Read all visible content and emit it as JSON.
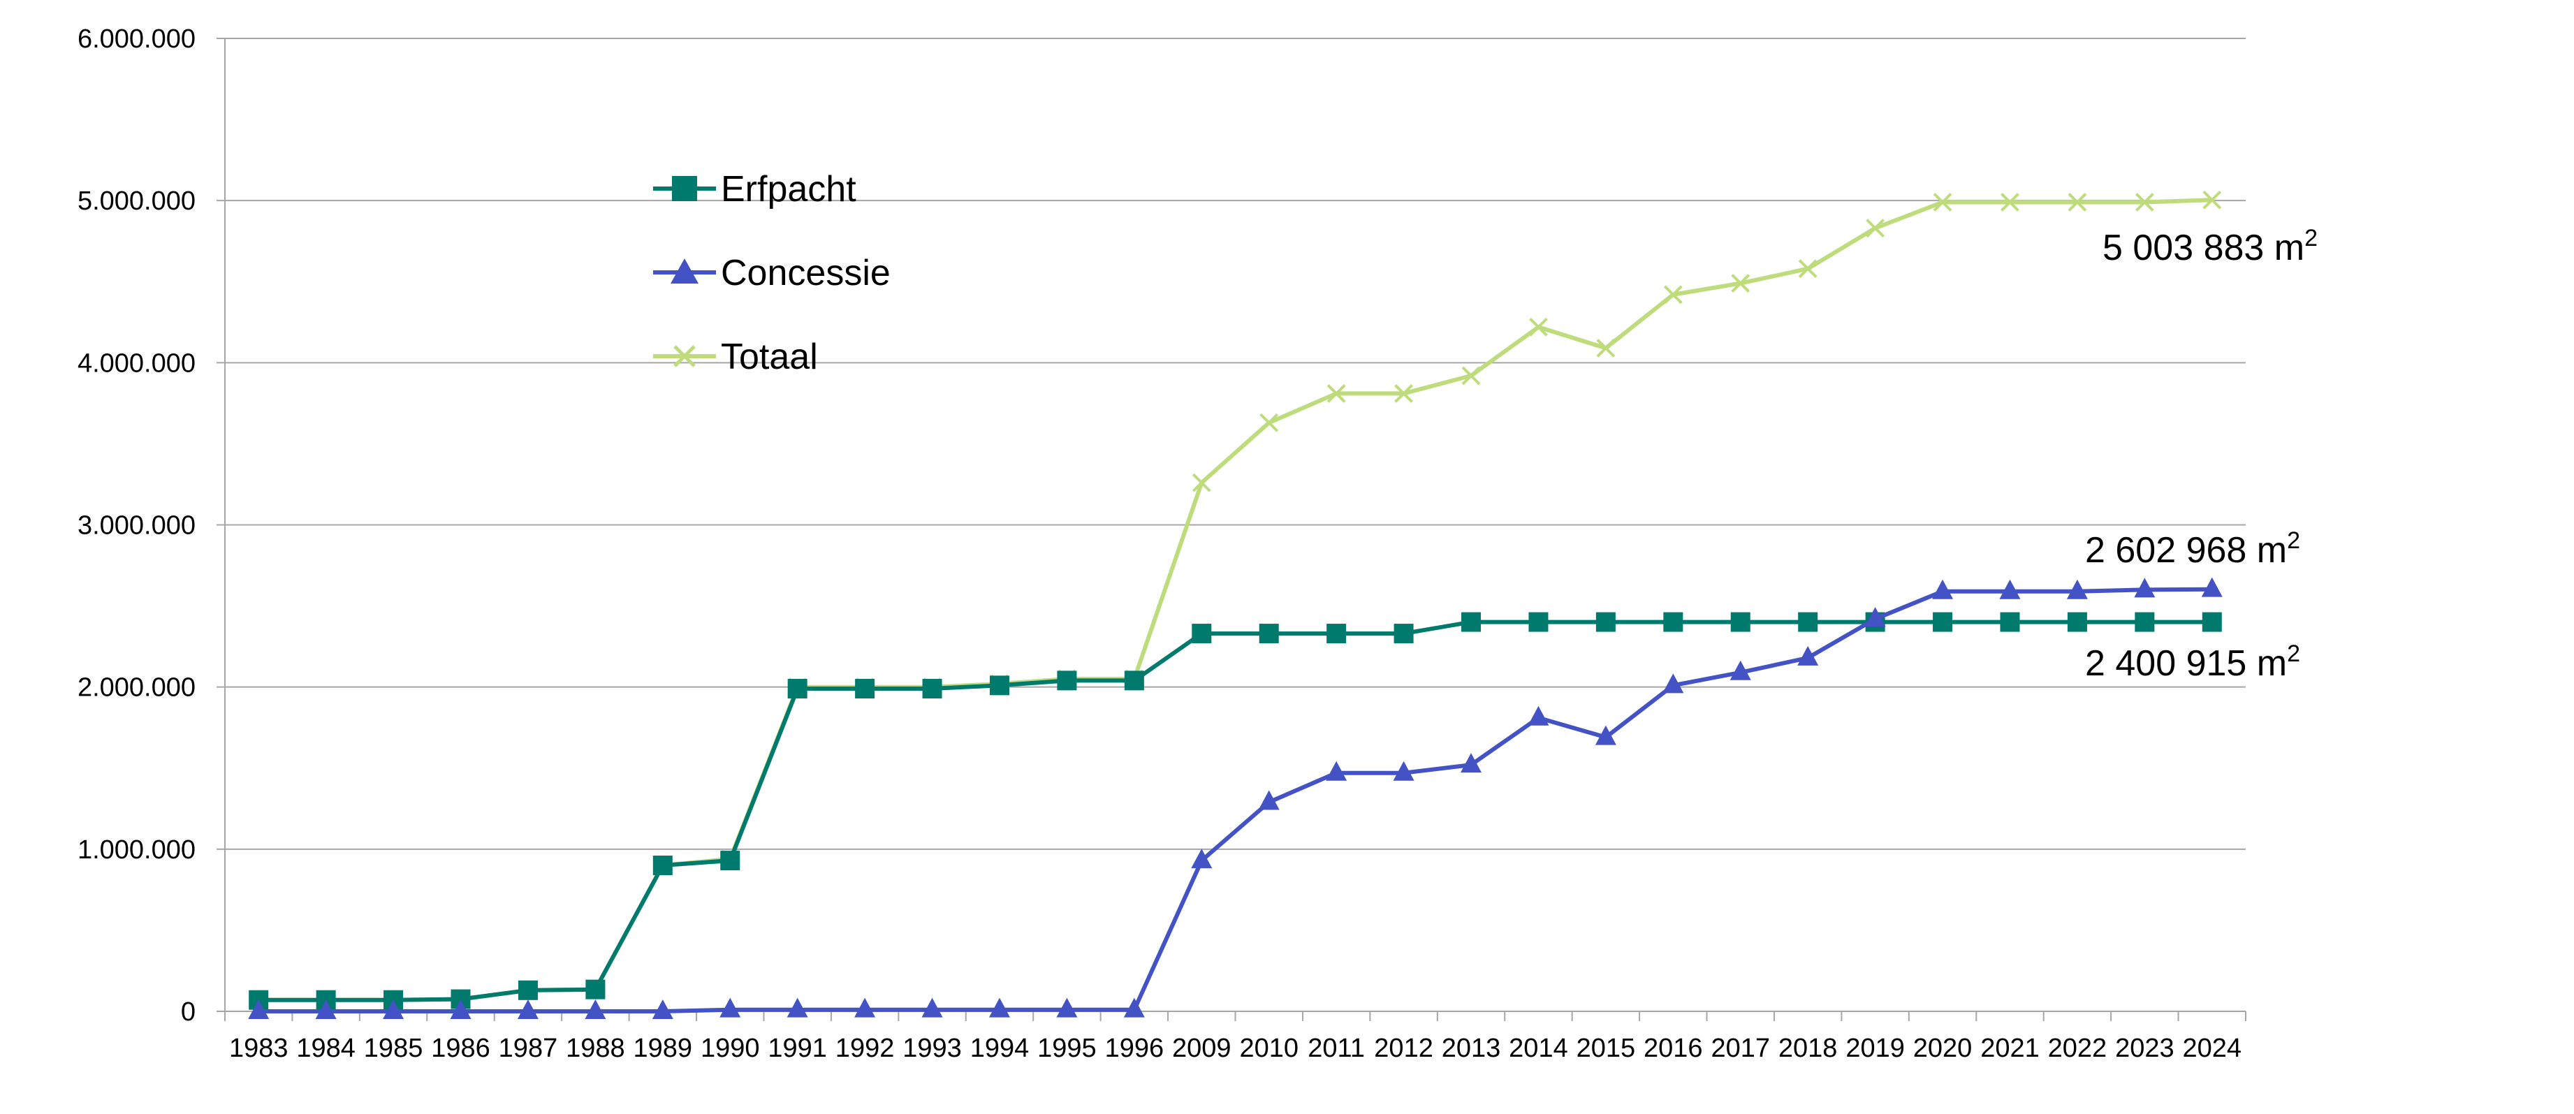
{
  "chart_data": {
    "type": "line",
    "title": "",
    "xlabel": "",
    "ylabel": "",
    "categories": [
      "1983",
      "1984",
      "1985",
      "1986",
      "1987",
      "1988",
      "1989",
      "1990",
      "1991",
      "1992",
      "1993",
      "1994",
      "1995",
      "1996",
      "2009",
      "2010",
      "2011",
      "2012",
      "2013",
      "2014",
      "2015",
      "2016",
      "2017",
      "2018",
      "2019",
      "2020",
      "2021",
      "2022",
      "2023",
      "2024"
    ],
    "y_ticks": [
      "0",
      "1.000.000",
      "2.000.000",
      "3.000.000",
      "4.000.000",
      "5.000.000",
      "6.000.000"
    ],
    "ylim": [
      0,
      6000000
    ],
    "grid": "horizontal",
    "legend_position": "upper-left inside",
    "series": [
      {
        "name": "Erfpacht",
        "color": "#007A6C",
        "marker": "square",
        "values": [
          70000,
          70000,
          70000,
          75000,
          130000,
          135000,
          900000,
          930000,
          1990000,
          1990000,
          1990000,
          2010000,
          2040000,
          2040000,
          2330000,
          2330000,
          2330000,
          2330000,
          2400915,
          2400915,
          2400915,
          2400915,
          2400915,
          2400915,
          2400915,
          2400915,
          2400915,
          2400915,
          2400915,
          2400915
        ]
      },
      {
        "name": "Concessie",
        "color": "#4352C4",
        "marker": "triangle",
        "values": [
          0,
          0,
          0,
          0,
          0,
          0,
          0,
          10000,
          10000,
          10000,
          10000,
          10000,
          10000,
          10000,
          930000,
          1290000,
          1470000,
          1470000,
          1520000,
          1810000,
          1690000,
          2010000,
          2090000,
          2180000,
          2420000,
          2590000,
          2590000,
          2590000,
          2600000,
          2602968
        ]
      },
      {
        "name": "Totaal",
        "color": "#BEDC7C",
        "marker": "x",
        "values": [
          70000,
          70000,
          70000,
          75000,
          130000,
          135000,
          900000,
          940000,
          2000000,
          2000000,
          2000000,
          2020000,
          2050000,
          2050000,
          3260000,
          3630000,
          3810000,
          3810000,
          3920000,
          4220000,
          4090000,
          4420000,
          4490000,
          4580000,
          4830000,
          4990000,
          4990000,
          4990000,
          4990000,
          5003883
        ]
      }
    ],
    "annotations": {
      "totaal_end": {
        "text": "5 003 883 m",
        "sup": "2"
      },
      "concessie_end": {
        "text": "2 602 968 m",
        "sup": "2"
      },
      "erfpacht_end": {
        "text": "2 400 915 m",
        "sup": "2"
      }
    }
  }
}
